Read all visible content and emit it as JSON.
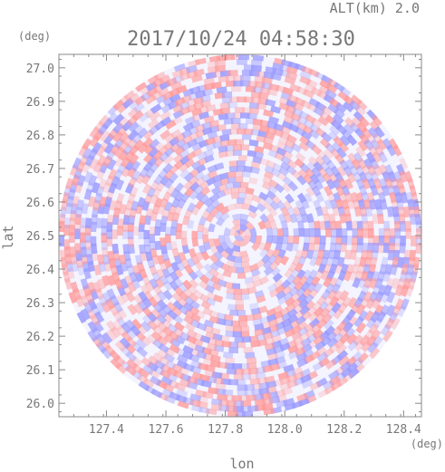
{
  "chart_data": {
    "type": "heatmap",
    "title": "2017/10/24 04:58:30",
    "subtitle": "ALT(km) 2.0",
    "xlabel": "lon",
    "ylabel": "lat",
    "x_unit": "(deg)",
    "y_unit": "(deg)",
    "xlim": [
      127.24,
      128.46
    ],
    "ylim": [
      25.96,
      27.04
    ],
    "x_ticks": [
      127.4,
      127.6,
      127.8,
      128.0,
      128.2,
      128.4
    ],
    "x_tick_labels": [
      "127.4",
      "127.6",
      "127.8",
      "128.0",
      "128.2",
      "128.4"
    ],
    "y_ticks": [
      26.0,
      26.1,
      26.2,
      26.3,
      26.4,
      26.5,
      26.6,
      26.7,
      26.8,
      26.9,
      27.0
    ],
    "y_tick_labels": [
      "26.0",
      "26.1",
      "26.2",
      "26.3",
      "26.4",
      "26.5",
      "26.6",
      "26.7",
      "26.8",
      "26.9",
      "27.0"
    ],
    "center": {
      "lon": 127.85,
      "lat": 26.5
    },
    "radius_deg_lat": 0.54,
    "colors": {
      "positive": "#ff9a9a",
      "negative": "#9a9aff",
      "neutral": "#f4f4ff",
      "axis": "#888888",
      "text": "#777777"
    },
    "grid": false,
    "legend": "none"
  }
}
